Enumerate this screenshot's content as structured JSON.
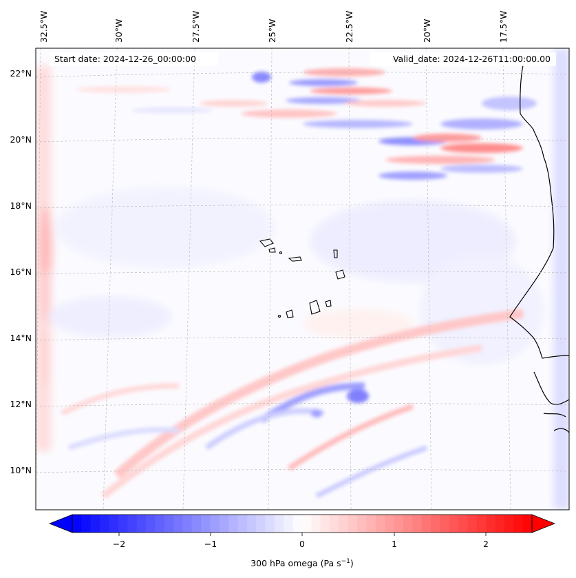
{
  "map": {
    "start_date": "Start date: 2024-12-26_00:00:00",
    "valid_date": "Valid_date: 2024-12-26T11:00:00.00",
    "lon_labels": [
      "32.5°W",
      "30°W",
      "27.5°W",
      "25°W",
      "22.5°W",
      "20°W",
      "17.5°W"
    ],
    "lat_labels": [
      "22°N",
      "20°N",
      "18°N",
      "16°N",
      "14°N",
      "12°N",
      "10°N"
    ],
    "field_colors": {
      "negative": "#0000ff",
      "neutral": "#ffffff",
      "positive": "#ff0000"
    }
  },
  "colorbar": {
    "label": "300 hPa omega (Pa s",
    "label_exponent": "−1",
    "label_suffix": ")",
    "ticks": [
      "−2",
      "−1",
      "0",
      "1",
      "2"
    ],
    "range": [
      -2.75,
      2.75
    ]
  }
}
